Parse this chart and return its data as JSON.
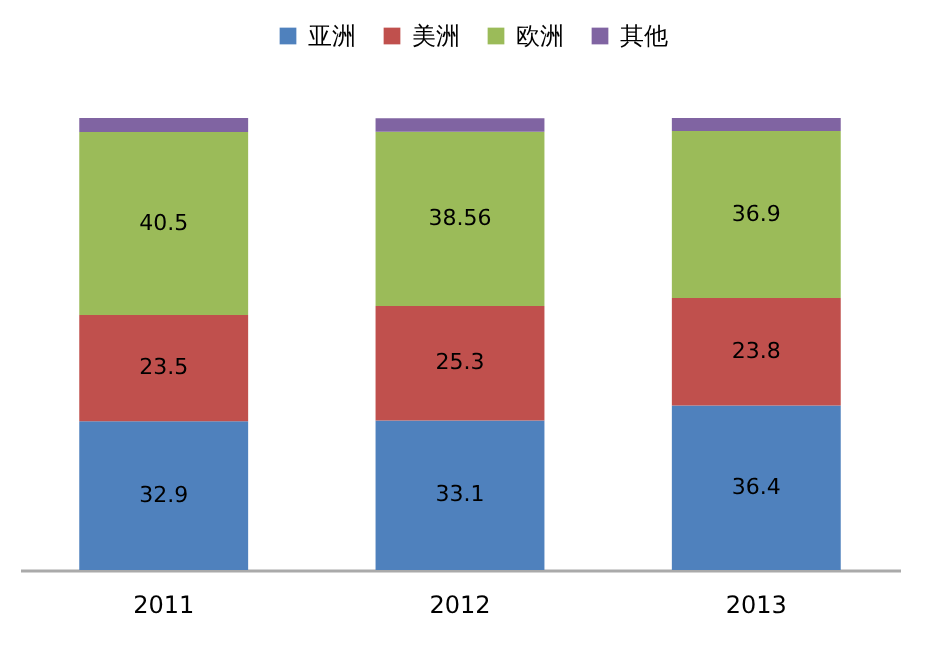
{
  "chart_data": {
    "type": "bar",
    "stacked": true,
    "categories": [
      "2011",
      "2012",
      "2013"
    ],
    "legend": "top",
    "series": [
      {
        "name": "亚洲",
        "color": "#4f81bd",
        "values": [
          32.9,
          33.1,
          36.4
        ],
        "value_labels": [
          "32.9",
          "33.1",
          "36.4"
        ]
      },
      {
        "name": "美洲",
        "color": "#c0504d",
        "values": [
          23.5,
          25.3,
          23.8
        ],
        "value_labels": [
          "23.5",
          "25.3",
          "23.8"
        ]
      },
      {
        "name": "欧洲",
        "color": "#9bbb59",
        "values": [
          40.5,
          38.56,
          36.9
        ],
        "value_labels": [
          "40.5",
          "38.56",
          "36.9"
        ]
      },
      {
        "name": "其他",
        "color": "#8064a2",
        "values": [
          3.1,
          3.0,
          2.9
        ],
        "value_labels": [
          null,
          null,
          null
        ]
      }
    ]
  }
}
